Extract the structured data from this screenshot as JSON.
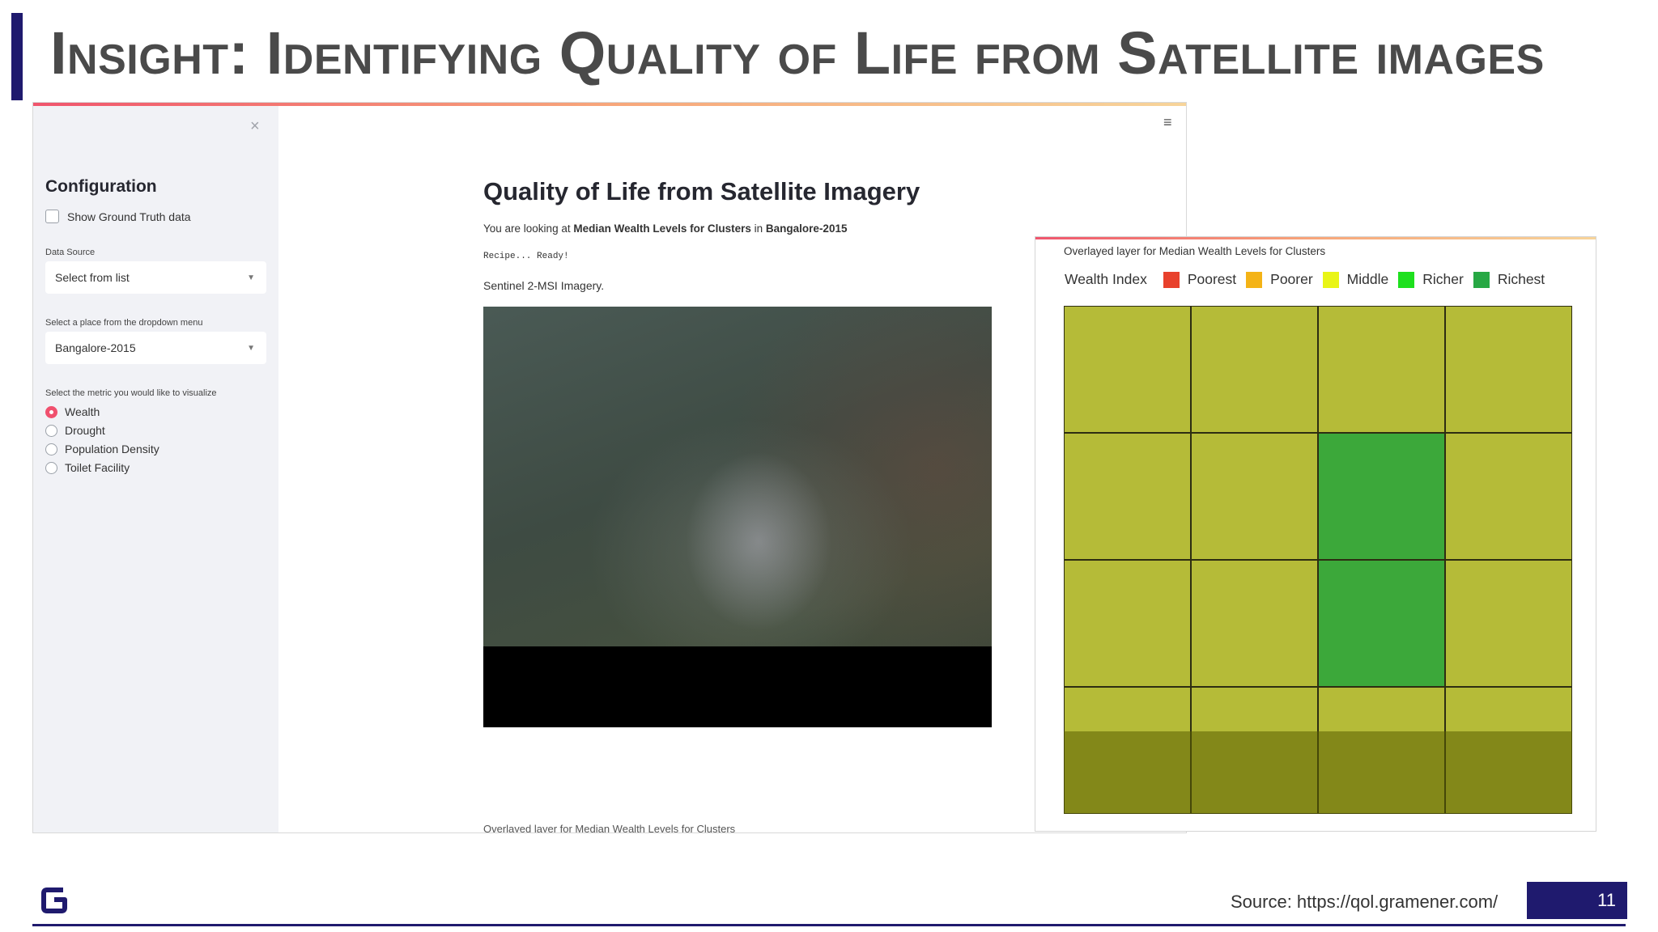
{
  "slide": {
    "title": "Insight: Identifying Quality of Life from Satellite images",
    "source": "Source: https://qol.gramener.com/",
    "page_number": "11",
    "brand_color": "#1f1a6e"
  },
  "sidebar": {
    "close_icon": "×",
    "heading": "Configuration",
    "ground_truth_label": "Show Ground Truth data",
    "ground_truth_checked": false,
    "data_source_label": "Data Source",
    "data_source_value": "Select from list",
    "place_label": "Select a place from the dropdown menu",
    "place_value": "Bangalore-2015",
    "metric_label": "Select the metric you would like to visualize",
    "metrics": [
      {
        "label": "Wealth",
        "selected": true
      },
      {
        "label": "Drought",
        "selected": false
      },
      {
        "label": "Population Density",
        "selected": false
      },
      {
        "label": "Toilet Facility",
        "selected": false
      }
    ],
    "accent_color": "#f0506e"
  },
  "main": {
    "menu_icon": "≡",
    "title": "Quality of Life from Satellite Imagery",
    "looking_prefix": "You are looking at ",
    "looking_metric": "Median Wealth Levels for Clusters",
    "looking_in": " in ",
    "looking_place": "Bangalore-2015",
    "status": "Recipe... Ready!",
    "imagery_label": "Sentinel 2-MSI Imagery.",
    "cut_off_caption": "Overlayed layer for Median Wealth Levels for Clusters"
  },
  "overlay": {
    "title": "Overlayed layer for Median Wealth Levels for Clusters",
    "legend_title": "Wealth Index",
    "legend": [
      {
        "label": "Poorest",
        "color": "#e8412c"
      },
      {
        "label": "Poorer",
        "color": "#f4b316"
      },
      {
        "label": "Middle",
        "color": "#e9f516"
      },
      {
        "label": "Richer",
        "color": "#1ee01e"
      },
      {
        "label": "Richest",
        "color": "#27a844"
      }
    ],
    "grid_levels": [
      [
        "Middle",
        "Middle",
        "Middle",
        "Middle"
      ],
      [
        "Middle",
        "Middle",
        "Richest",
        "Middle"
      ],
      [
        "Middle",
        "Middle",
        "Richest",
        "Middle"
      ],
      [
        "Middle",
        "Middle",
        "Middle",
        "Middle"
      ]
    ]
  }
}
